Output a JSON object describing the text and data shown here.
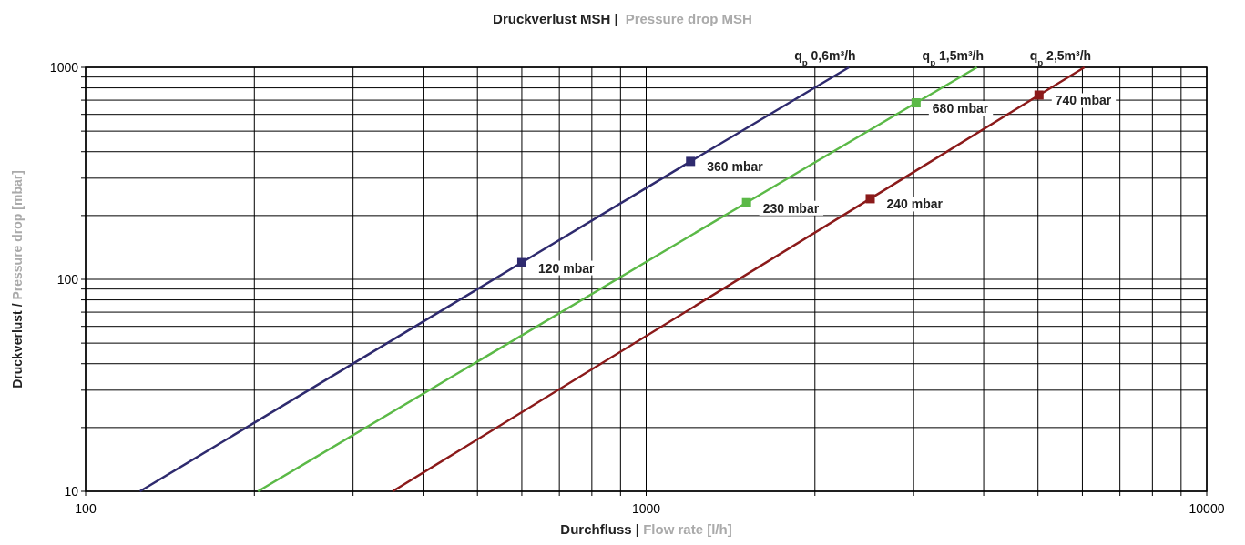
{
  "chart_data": {
    "type": "line",
    "title": "Druckverlust MSH |",
    "subtitle": "Pressure drop MSH",
    "xlabel": "Durchfluss | Flow rate [l/h]",
    "ylabel": "Druckverlust / Pressure drop [mbar]",
    "log": "xy",
    "grid": true,
    "marker": "square",
    "line_style": "solid",
    "xlim": [
      100,
      10000
    ],
    "ylim": [
      10,
      1000
    ],
    "xticks": [
      100,
      {
        "value": 200,
        "label": null
      },
      {
        "value": 300,
        "label": null
      },
      {
        "value": 400,
        "label": null
      },
      {
        "value": 500,
        "label": null
      },
      {
        "value": 600,
        "label": null
      },
      {
        "value": 700,
        "label": null
      },
      {
        "value": 800,
        "label": null
      },
      {
        "value": 900,
        "label": null
      },
      1000,
      {
        "value": 2000,
        "label": null
      },
      {
        "value": 3000,
        "label": null
      },
      {
        "value": 4000,
        "label": null
      },
      {
        "value": 5000,
        "label": null
      },
      {
        "value": 6000,
        "label": null
      },
      {
        "value": 7000,
        "label": null
      },
      {
        "value": 8000,
        "label": null
      },
      {
        "value": 9000,
        "label": null
      },
      10000
    ],
    "yticks": [
      10,
      {
        "value": 20,
        "label": null
      },
      {
        "value": 30,
        "label": null
      },
      {
        "value": 40,
        "label": null
      },
      {
        "value": 50,
        "label": null
      },
      {
        "value": 60,
        "label": null
      },
      {
        "value": 70,
        "label": null
      },
      {
        "value": 80,
        "label": null
      },
      {
        "value": 90,
        "label": null
      },
      100,
      {
        "value": 200,
        "label": null
      },
      {
        "value": 300,
        "label": null
      },
      {
        "value": 400,
        "label": null
      },
      {
        "value": 500,
        "label": null
      },
      {
        "value": 600,
        "label": null
      },
      {
        "value": 700,
        "label": null
      },
      {
        "value": 800,
        "label": null
      },
      {
        "value": 900,
        "label": null
      },
      1000
    ],
    "series": [
      {
        "name": "q$_{p}$ 0,6m³/h",
        "color": "#2e2a6e",
        "x": [
          125,
          600,
          1200,
          2300
        ],
        "values": [
          10,
          120,
          360,
          1000
        ],
        "value_labels": [
          null,
          "120 mbar",
          "360 mbar",
          null
        ]
      },
      {
        "name": "q$_{p}$ 1,5m³/h",
        "color": "#5bb947",
        "x": [
          203,
          1510,
          3030,
          3890
        ],
        "values": [
          10,
          230,
          680,
          1000
        ],
        "value_labels": [
          null,
          "230 mbar",
          "680 mbar",
          null
        ]
      },
      {
        "name": "q$_{p}$ 2,5m³/h",
        "color": "#8b1a1a",
        "x": [
          353,
          2510,
          5020,
          6050
        ],
        "values": [
          10,
          240,
          740,
          1000
        ],
        "value_labels": [
          null,
          "240 mbar",
          "740 mbar",
          null
        ]
      }
    ]
  }
}
